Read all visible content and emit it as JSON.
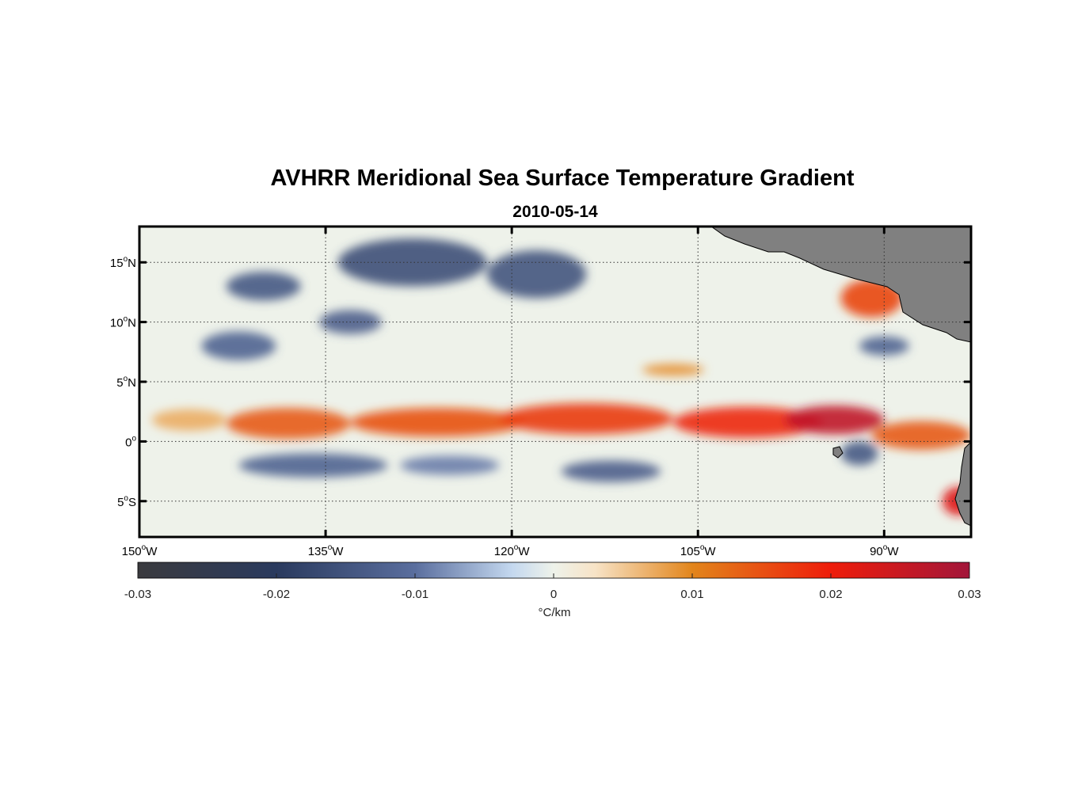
{
  "chart_data": {
    "type": "heatmap",
    "title": "AVHRR Meridional Sea Surface Temperature Gradient",
    "subtitle": "2010-05-14",
    "colorbar_label": "°C/km",
    "xrange": [
      -150,
      -83
    ],
    "yrange": [
      -8,
      18
    ],
    "x_ticks": [
      {
        "value": -150,
        "num": "150",
        "suffix": "W"
      },
      {
        "value": -135,
        "num": "135",
        "suffix": "W"
      },
      {
        "value": -120,
        "num": "120",
        "suffix": "W"
      },
      {
        "value": -105,
        "num": "105",
        "suffix": "W"
      },
      {
        "value": -90,
        "num": "90",
        "suffix": "W"
      }
    ],
    "y_ticks": [
      {
        "value": 15,
        "num": "15",
        "suffix": "N"
      },
      {
        "value": 10,
        "num": "10",
        "suffix": "N"
      },
      {
        "value": 5,
        "num": "5",
        "suffix": "N"
      },
      {
        "value": 0,
        "num": "0",
        "suffix": ""
      },
      {
        "value": -5,
        "num": "5",
        "suffix": "S"
      }
    ],
    "colorbar_range": [
      -0.03,
      0.03
    ],
    "colorbar_ticks": [
      {
        "value": -0.03,
        "label": "-0.03"
      },
      {
        "value": -0.02,
        "label": "-0.02"
      },
      {
        "value": -0.01,
        "label": "-0.01"
      },
      {
        "value": 0,
        "label": "0"
      },
      {
        "value": 0.01,
        "label": "0.01"
      },
      {
        "value": 0.02,
        "label": "0.02"
      },
      {
        "value": 0.03,
        "label": "0.03"
      }
    ],
    "colormap": [
      {
        "value": -0.03,
        "color": "#3a3a3e"
      },
      {
        "value": -0.02,
        "color": "#2a3a5e"
      },
      {
        "value": -0.01,
        "color": "#5a6e9e"
      },
      {
        "value": -0.003,
        "color": "#c4d8ef"
      },
      {
        "value": 0,
        "color": "#eef2ea"
      },
      {
        "value": 0.003,
        "color": "#f7e3c6"
      },
      {
        "value": 0.01,
        "color": "#e2851b"
      },
      {
        "value": 0.02,
        "color": "#ee1c0a"
      },
      {
        "value": 0.03,
        "color": "#a2163a"
      }
    ],
    "features": [
      {
        "name": "equatorial-front-west",
        "lon": -138,
        "lat": 1.5,
        "rlon": 5,
        "rlat": 1.3,
        "value": 0.014
      },
      {
        "name": "equatorial-front-main-1",
        "lon": -126,
        "lat": 1.6,
        "rlon": 7,
        "rlat": 1.2,
        "value": 0.015
      },
      {
        "name": "equatorial-front-main-2",
        "lon": -114,
        "lat": 1.9,
        "rlon": 7,
        "rlat": 1.3,
        "value": 0.017
      },
      {
        "name": "equatorial-front-main-3",
        "lon": -101,
        "lat": 1.6,
        "rlon": 6,
        "rlat": 1.3,
        "value": 0.019
      },
      {
        "name": "equatorial-front-east",
        "lon": -94,
        "lat": 1.8,
        "rlon": 4,
        "rlat": 1.2,
        "value": 0.026
      },
      {
        "name": "galapagos-front",
        "lon": -87,
        "lat": 0.5,
        "rlon": 4,
        "rlat": 1.2,
        "value": 0.014
      },
      {
        "name": "front-tail-far-west",
        "lon": -146,
        "lat": 1.8,
        "rlon": 3,
        "rlat": 0.9,
        "value": 0.007
      },
      {
        "name": "central-america-warm",
        "lon": -91,
        "lat": 12,
        "rlon": 2.5,
        "rlat": 1.6,
        "value": 0.016
      },
      {
        "name": "peru-coast-warm",
        "lon": -84,
        "lat": -5,
        "rlon": 1.3,
        "rlat": 1.2,
        "value": 0.022
      },
      {
        "name": "north-band-cold-1",
        "lon": -128,
        "lat": 15,
        "rlon": 6,
        "rlat": 2,
        "value": -0.016
      },
      {
        "name": "north-band-cold-2",
        "lon": -118,
        "lat": 14,
        "rlon": 4,
        "rlat": 2,
        "value": -0.015
      },
      {
        "name": "north-band-cold-3",
        "lon": -140,
        "lat": 13,
        "rlon": 3,
        "rlat": 1.2,
        "value": -0.014
      },
      {
        "name": "west-cold-1",
        "lon": -142,
        "lat": 8,
        "rlon": 3,
        "rlat": 1.2,
        "value": -0.012
      },
      {
        "name": "west-cold-2",
        "lon": -133,
        "lat": 10,
        "rlon": 2.5,
        "rlat": 1,
        "value": -0.013
      },
      {
        "name": "south-cold-1",
        "lon": -136,
        "lat": -2,
        "rlon": 6,
        "rlat": 1,
        "value": -0.012
      },
      {
        "name": "south-cold-2",
        "lon": -112,
        "lat": -2.5,
        "rlon": 4,
        "rlat": 0.9,
        "value": -0.013
      },
      {
        "name": "south-cold-3",
        "lon": -125,
        "lat": -2,
        "rlon": 4,
        "rlat": 0.8,
        "value": -0.009
      },
      {
        "name": "east-cold",
        "lon": -90,
        "lat": 8,
        "rlon": 2,
        "rlat": 0.8,
        "value": -0.012
      },
      {
        "name": "east-cold-south",
        "lon": -92,
        "lat": -1,
        "rlon": 1.5,
        "rlat": 1,
        "value": -0.014
      },
      {
        "name": "ne-warm-patch",
        "lon": -107,
        "lat": 6,
        "rlon": 2.5,
        "rlat": 0.5,
        "value": 0.009
      }
    ]
  }
}
